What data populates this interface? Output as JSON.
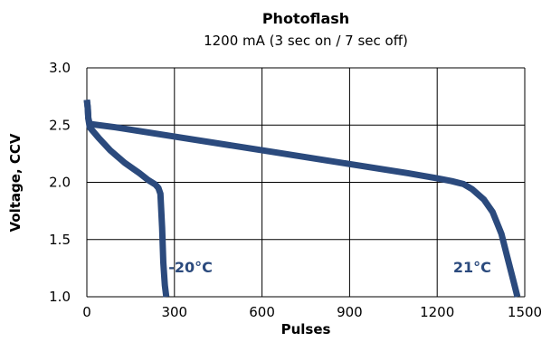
{
  "chart_data": {
    "type": "line",
    "title": "Photoflash",
    "subtitle": "1200 mA (3 sec on / 7 sec off)",
    "xlabel": "Pulses",
    "ylabel": "Voltage, CCV",
    "xlim": [
      0,
      1500
    ],
    "ylim": [
      1.0,
      3.0
    ],
    "xticks": [
      0,
      300,
      600,
      900,
      1200,
      1500
    ],
    "yticks": [
      1.0,
      1.5,
      2.0,
      2.5,
      3.0
    ],
    "xtick_labels": [
      "0",
      "300",
      "600",
      "900",
      "1200",
      "1500"
    ],
    "ytick_labels": [
      "1.0",
      "1.5",
      "2.0",
      "2.5",
      "3.0"
    ],
    "grid": true,
    "line_color": "#2b4a7d",
    "grid_color": "#000000",
    "series": [
      {
        "x": [
          0,
          3,
          5,
          10,
          40,
          80,
          130,
          180,
          210,
          235,
          245,
          252,
          258,
          262,
          267,
          272
        ],
        "y": [
          2.72,
          2.65,
          2.56,
          2.48,
          2.39,
          2.28,
          2.17,
          2.08,
          2.02,
          1.98,
          1.95,
          1.9,
          1.6,
          1.3,
          1.1,
          1.0
        ]
      },
      {
        "x": [
          0,
          3,
          5,
          10,
          100,
          300,
          600,
          900,
          1100,
          1200,
          1250,
          1290,
          1320,
          1360,
          1390,
          1420,
          1440,
          1460,
          1475
        ],
        "y": [
          2.72,
          2.65,
          2.56,
          2.51,
          2.48,
          2.4,
          2.28,
          2.16,
          2.08,
          2.035,
          2.01,
          1.985,
          1.94,
          1.85,
          1.74,
          1.55,
          1.35,
          1.15,
          1.0
        ]
      }
    ],
    "annotations": [
      {
        "text": "-20°C",
        "x": 355,
        "y": 1.26
      },
      {
        "text": "21°C",
        "x": 1320,
        "y": 1.26
      }
    ]
  }
}
